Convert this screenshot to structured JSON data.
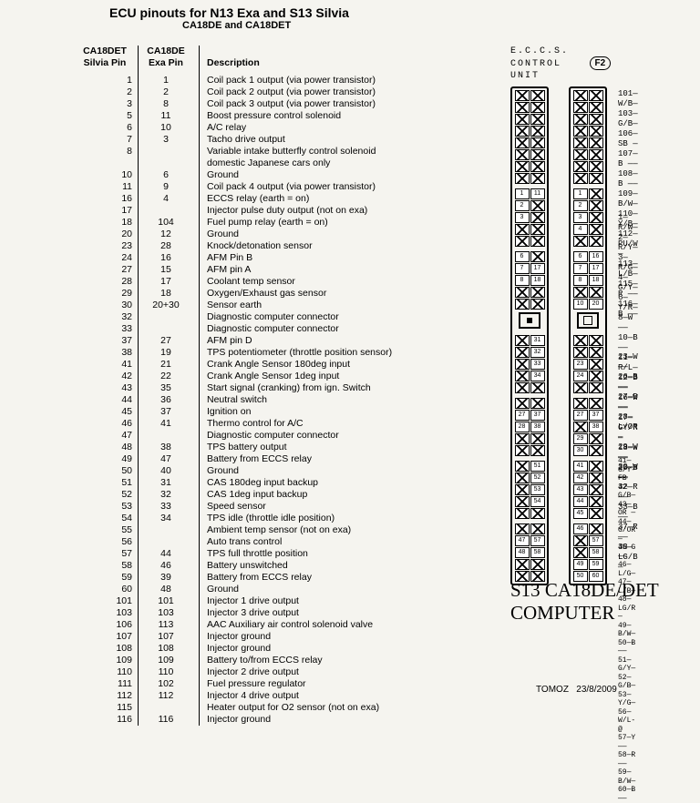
{
  "title": "ECU pinouts for N13 Exa and S13 Silvia",
  "subtitle": "CA18DE and CA18DET",
  "columns": [
    "CA18DET<br>Silvia Pin",
    "CA18DE<br>Exa Pin",
    "Description"
  ],
  "rows": [
    [
      "1",
      "1",
      "Coil pack 1 output (via power transistor)"
    ],
    [
      "2",
      "2",
      "Coil pack 2 output (via power transistor)"
    ],
    [
      "3",
      "8",
      "Coil pack 3 output (via power transistor)"
    ],
    [
      "5",
      "11",
      "Boost pressure control solenoid"
    ],
    [
      "6",
      "10",
      "A/C relay"
    ],
    [
      "7",
      "3",
      "Tacho drive output"
    ],
    [
      "8",
      "",
      "Variable intake butterfly control solenoid"
    ],
    [
      "",
      "",
      "domestic Japanese cars only"
    ],
    [
      "10",
      "6",
      "Ground"
    ],
    [
      "11",
      "9",
      "Coil pack 4 output (via power transistor)"
    ],
    [
      "16",
      "4",
      "ECCS relay (earth = on)"
    ],
    [
      "17",
      "",
      "Injector pulse duty output (not on exa)"
    ],
    [
      "18",
      "104",
      "Fuel pump relay (earth = on)"
    ],
    [
      "20",
      "12",
      "Ground"
    ],
    [
      "23",
      "28",
      "Knock/detonation sensor"
    ],
    [
      "24",
      "16",
      "AFM Pin B"
    ],
    [
      "27",
      "15",
      "AFM pin A"
    ],
    [
      "28",
      "17",
      "Coolant temp sensor"
    ],
    [
      "29",
      "18",
      "Oxygen/Exhaust gas sensor"
    ],
    [
      "30",
      "20+30",
      "Sensor earth"
    ],
    [
      "32",
      "",
      "Diagnostic computer connector"
    ],
    [
      "33",
      "",
      "Diagnostic computer connector"
    ],
    [
      "37",
      "27",
      "AFM pin D"
    ],
    [
      "38",
      "19",
      "TPS potentiometer (throttle position sensor)"
    ],
    [
      "41",
      "21",
      "Crank Angle Sensor 180deg input"
    ],
    [
      "42",
      "22",
      "Crank Angle Sensor 1deg input"
    ],
    [
      "43",
      "35",
      "Start signal (cranking) from ign. Switch"
    ],
    [
      "44",
      "36",
      "Neutral switch"
    ],
    [
      "45",
      "37",
      "Ignition on"
    ],
    [
      "46",
      "41",
      "Thermo control for A/C"
    ],
    [
      "47",
      "",
      "Diagnostic computer connector"
    ],
    [
      "48",
      "38",
      "TPS battery output"
    ],
    [
      "49",
      "47",
      "Battery from ECCS relay"
    ],
    [
      "50",
      "40",
      "Ground"
    ],
    [
      "51",
      "31",
      "CAS 180deg input backup"
    ],
    [
      "52",
      "32",
      "CAS 1deg input backup"
    ],
    [
      "53",
      "33",
      "Speed sensor"
    ],
    [
      "54",
      "34",
      "TPS idle (throttle idle position)"
    ],
    [
      "55",
      "",
      "Ambient temp sensor (not on exa)"
    ],
    [
      "56",
      "",
      "Auto trans control"
    ],
    [
      "57",
      "44",
      "TPS full throttle position"
    ],
    [
      "58",
      "46",
      "Battery unswitched"
    ],
    [
      "59",
      "39",
      "Battery from ECCS relay"
    ],
    [
      "60",
      "48",
      "Ground"
    ],
    [
      "101",
      "101",
      "Injector 1 drive output"
    ],
    [
      "103",
      "103",
      "Injector 3 drive output"
    ],
    [
      "106",
      "113",
      "AAC Auxiliary air control solenoid valve"
    ],
    [
      "107",
      "107",
      "Injector ground"
    ],
    [
      "108",
      "108",
      "Injector ground"
    ],
    [
      "109",
      "109",
      "Battery to/from ECCS relay"
    ],
    [
      "110",
      "110",
      "Injector 2 drive output"
    ],
    [
      "111",
      "102",
      "Fuel pressure regulator"
    ],
    [
      "112",
      "112",
      "Injector 4 drive output"
    ],
    [
      "115",
      "",
      "Heater output for O2 sensor (not on exa)"
    ],
    [
      "116",
      "116",
      "Injector ground"
    ]
  ],
  "connector": {
    "heading1": "E.C.C.S.",
    "heading2": "CONTROL",
    "heading3": "UNIT",
    "f2": "F2",
    "blocks_left": [
      [
        [
          "x",
          "x"
        ],
        [
          "x",
          "x"
        ],
        [
          "x",
          "x"
        ],
        [
          "x",
          "x"
        ],
        [
          "x",
          "x"
        ],
        [
          "x",
          "x"
        ],
        [
          "x",
          "x"
        ],
        [
          "x",
          "x"
        ]
      ],
      [
        [
          "1",
          "11"
        ],
        [
          "2",
          "x"
        ],
        [
          "3",
          "x"
        ],
        [
          "x",
          "x"
        ],
        [
          "x",
          "x"
        ]
      ],
      [
        [
          "6",
          "x"
        ],
        [
          "7",
          "17"
        ],
        [
          "8",
          "18"
        ],
        [
          "x",
          "x"
        ],
        [
          "x",
          "x"
        ]
      ],
      "keyDot",
      [
        [
          "x",
          "31"
        ],
        [
          "x",
          "32"
        ],
        [
          "x",
          "33"
        ],
        [
          "x",
          "34"
        ],
        [
          "x",
          "x"
        ]
      ],
      [
        [
          "x",
          "x"
        ],
        [
          "27",
          "37"
        ],
        [
          "28",
          "38"
        ],
        [
          "x",
          "x"
        ],
        [
          "x",
          "x"
        ]
      ],
      [
        [
          "x",
          "51"
        ],
        [
          "x",
          "52"
        ],
        [
          "x",
          "53"
        ],
        [
          "x",
          "54"
        ],
        [
          "x",
          "x"
        ]
      ],
      [
        [
          "x",
          "x"
        ],
        [
          "47",
          "57"
        ],
        [
          "48",
          "58"
        ],
        [
          "x",
          "x"
        ],
        [
          "x",
          "x"
        ]
      ]
    ],
    "blocks_right": [
      [
        [
          "x",
          "x"
        ],
        [
          "x",
          "x"
        ],
        [
          "x",
          "x"
        ],
        [
          "x",
          "x"
        ],
        [
          "x",
          "x"
        ],
        [
          "x",
          "x"
        ],
        [
          "x",
          "x"
        ],
        [
          "x",
          "x"
        ]
      ],
      [
        [
          "1",
          "x"
        ],
        [
          "2",
          "x"
        ],
        [
          "3",
          "x"
        ],
        [
          "4",
          "x"
        ],
        [
          "x",
          "x"
        ]
      ],
      [
        [
          "6",
          "16"
        ],
        [
          "7",
          "17"
        ],
        [
          "8",
          "18"
        ],
        [
          "x",
          "x"
        ],
        [
          "10",
          "20"
        ]
      ],
      "keyRing",
      [
        [
          "x",
          "x"
        ],
        [
          "x",
          "x"
        ],
        [
          "23",
          "x"
        ],
        [
          "24",
          "x"
        ],
        [
          "x",
          "x"
        ]
      ],
      [
        [
          "x",
          "x"
        ],
        [
          "27",
          "37"
        ],
        [
          "x",
          "38"
        ],
        [
          "29",
          "x"
        ],
        [
          "30",
          "x"
        ]
      ],
      [
        [
          "41",
          "x"
        ],
        [
          "42",
          "x"
        ],
        [
          "43",
          "x"
        ],
        [
          "44",
          "x"
        ],
        [
          "45",
          "x"
        ]
      ],
      [
        [
          "46",
          "x"
        ],
        [
          "x",
          "57"
        ],
        [
          "x",
          "58"
        ],
        [
          "49",
          "59"
        ],
        [
          "50",
          "60"
        ]
      ]
    ]
  },
  "wires_upper": [
    "101—W/B—",
    "103—G/B—",
    "106—SB —",
    "107—B ——",
    "108—B ——",
    "109—B/W—",
    "110—Y/B—",
    "112—PU/W—",
    "113—L/B—",
    "115—R ——",
    "116—B ——"
  ],
  "wires_mid1": [
    "1—R/W—",
    "2—R/Y—",
    "3—R/G—",
    "4—G/Y—",
    "6—Y/R—",
    "8—W ——",
    "10—B ——",
    "11—R/L—",
    "12—B ——",
    "16—W ——",
    "17—GY/R—",
    "18—W ——",
    "20—B ——"
  ],
  "wires_mid2": [
    "23—W ——",
    "26—B ——",
    "27—B ——",
    "28—L/OR—",
    "29—W ——",
    "30—W ——",
    "32—R ——",
    "33—B ——",
    "37—R ——",
    "38—LG/B—"
  ],
  "wires_lower": [
    "41—G/Y-FB",
    "42—G/B—",
    "43—OR —",
    "44—G/OR—",
    "45—G ——",
    "46—L/G—",
    "47—L/B—",
    "48—LG/R—",
    "49—B/W—",
    "50—B ——",
    "51—G/Y—",
    "52—G/B—",
    "53—Y/G—",
    "56—W/L-@",
    "57—Y ——",
    "58—R ——",
    "59—B/W—",
    "60—B ——"
  ],
  "big_label_l1": "S13 CA18DE/DET",
  "big_label_l2": "COMPUTER",
  "footer_name": "TOMOZ",
  "footer_date": "23/8/2009"
}
